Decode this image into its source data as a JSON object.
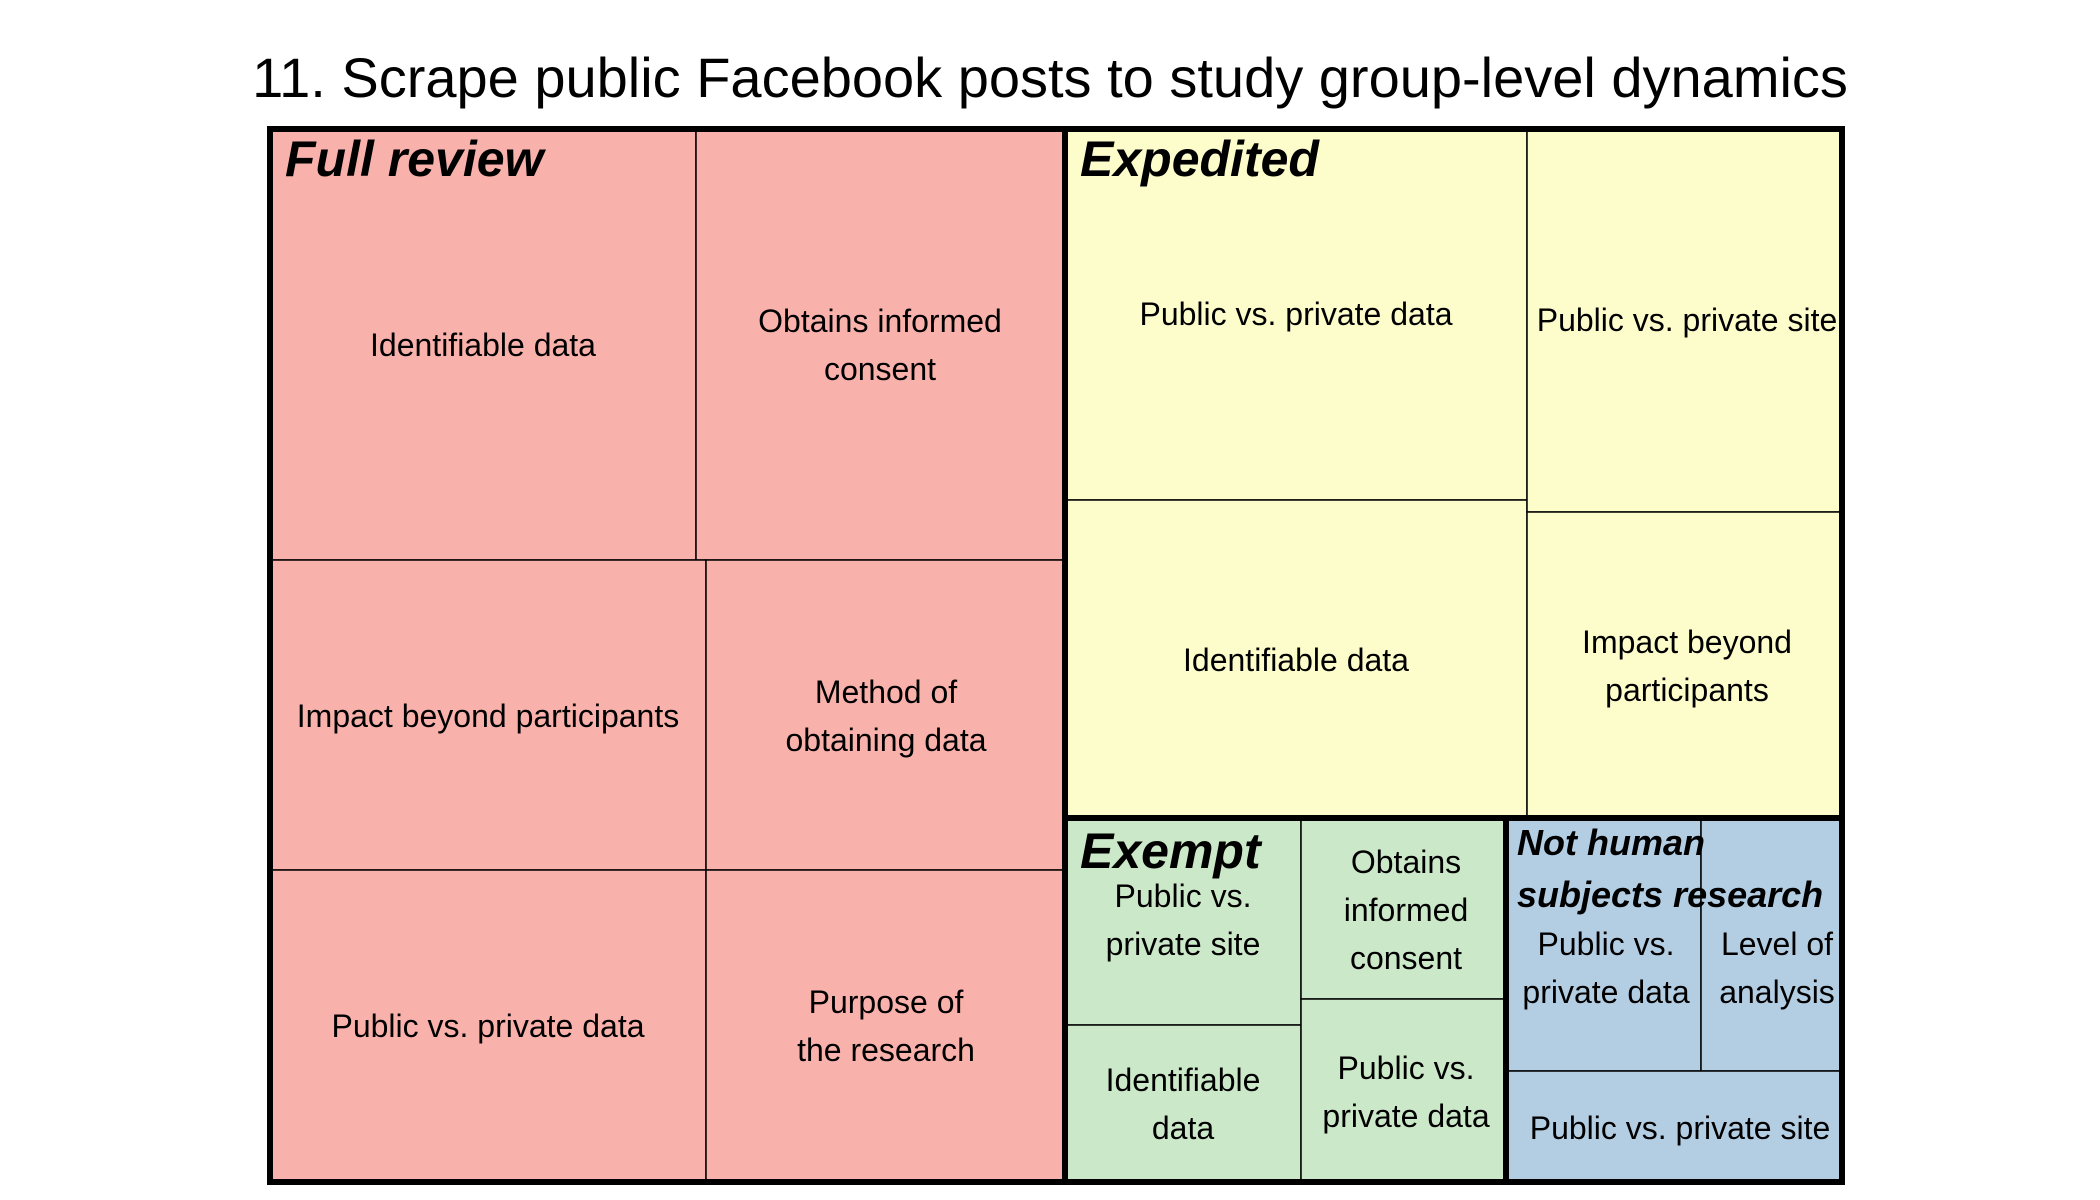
{
  "chart_data": {
    "type": "treemap",
    "title": "11. Scrape public Facebook posts to study group-level dynamics",
    "groups": [
      {
        "name": "Full review",
        "color": "#f9b1ab",
        "children": [
          {
            "label": "Identifiable data",
            "lines": [
              "Identifiable data"
            ]
          },
          {
            "label": "Obtains informed consent",
            "lines": [
              "Obtains informed",
              "consent"
            ]
          },
          {
            "label": "Impact beyond participants",
            "lines": [
              "Impact beyond participants"
            ]
          },
          {
            "label": "Method of obtaining data",
            "lines": [
              "Method of",
              "obtaining data"
            ]
          },
          {
            "label": "Public vs. private data",
            "lines": [
              "Public vs. private data"
            ]
          },
          {
            "label": "Purpose of the research",
            "lines": [
              "Purpose of",
              "the research"
            ]
          }
        ]
      },
      {
        "name": "Expedited",
        "color": "#fdfccb",
        "children": [
          {
            "label": "Public vs. private data",
            "lines": [
              "Public vs. private data"
            ]
          },
          {
            "label": "Identifiable data",
            "lines": [
              "Identifiable data"
            ]
          },
          {
            "label": "Public vs. private site",
            "lines": [
              "Public vs. private site"
            ]
          },
          {
            "label": "Impact beyond participants",
            "lines": [
              "Impact beyond",
              "participants"
            ]
          }
        ]
      },
      {
        "name": "Exempt",
        "color": "#cbe8c8",
        "children": [
          {
            "label": "Public vs. private site",
            "lines": [
              "Public vs.",
              "private site"
            ]
          },
          {
            "label": "Identifiable data",
            "lines": [
              "Identifiable",
              "data"
            ]
          },
          {
            "label": "Obtains informed consent",
            "lines": [
              "Obtains",
              "informed",
              "consent"
            ]
          },
          {
            "label": "Public vs. private data",
            "lines": [
              "Public vs.",
              "private data"
            ]
          }
        ]
      },
      {
        "name": "Not human subjects research",
        "name_lines": [
          "Not human",
          "subjects research"
        ],
        "color": "#b3cde3",
        "children": [
          {
            "label": "Public vs. private data",
            "lines": [
              "Public vs.",
              "private data"
            ]
          },
          {
            "label": "Level of analysis",
            "lines": [
              "Level of",
              "analysis"
            ]
          },
          {
            "label": "Public vs. private site",
            "lines": [
              "Public vs. private site"
            ]
          }
        ]
      }
    ]
  }
}
